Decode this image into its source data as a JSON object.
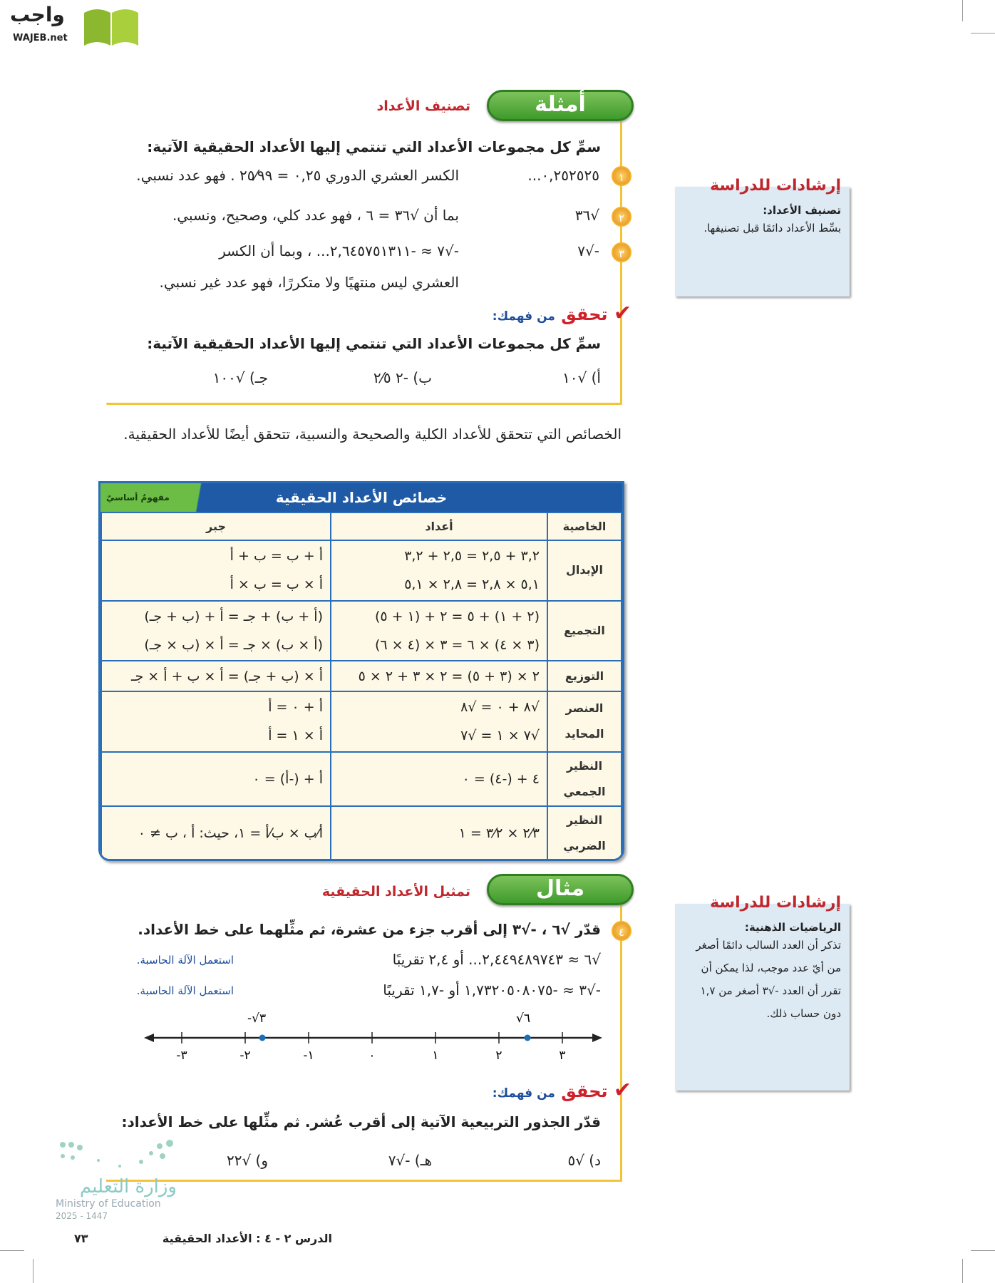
{
  "logo": {
    "ar": "واجب",
    "en": "WAJEB.net"
  },
  "examples": {
    "header": "أمثلة",
    "subtitle": "تصنيف الأعداد",
    "prompt": "سمِّ كل مجموعات الأعداد التي تنتمي إليها الأعداد الحقيقية الآتية:",
    "items": [
      {
        "num": "١",
        "expr": "٠,٢٥٢٥٢٥...",
        "text": "الكسر العشري الدوري ٠,٢٥ = ٢٥⁄٩٩ . فهو عدد نسبي."
      },
      {
        "num": "٢",
        "expr": "√٣٦",
        "text": "بما أن √٣٦ = ٦ ، فهو عدد كلي، وصحيح، ونسبي."
      },
      {
        "num": "٣",
        "expr": "-√٧",
        "text": "-√٧ ≈ -٢,٦٤٥٧٥١٣١١... ، وبما أن الكسر",
        "text2": "العشري ليس منتهيًا ولا متكررًا، فهو عدد غير نسبي."
      }
    ],
    "check": {
      "title": "تحقق",
      "subtitle": "من فهمك:",
      "prompt": "سمِّ كل مجموعات الأعداد التي تنتمي إليها الأعداد الحقيقية الآتية:",
      "items": [
        "أ) √١٠",
        "ب) -٢ ٢⁄٥",
        "جـ) √١٠٠"
      ]
    }
  },
  "note1": {
    "title": "إرشادات للدراسة",
    "heading": "تصنيف الأعداد:",
    "body": "بسِّط الأعداد دائمًا قبل تصنيفها."
  },
  "paragraph": "الخصائص التي تتحقق للأعداد الكلية والصحيحة والنسبية، تتحقق أيضًا للأعداد الحقيقية.",
  "table": {
    "title": "خصائص الأعداد الحقيقية",
    "badge": "مفهومٌ أساسيّ",
    "headers": [
      "الخاصية",
      "أعداد",
      "جبر"
    ],
    "rows": [
      {
        "p": "الإبدال",
        "n": [
          "٣,٢ + ٢,٥ = ٢,٥ + ٣,٢",
          "٥,١ × ٢,٨ = ٢,٨ × ٥,١"
        ],
        "a": [
          "أ + ب = ب + أ",
          "أ × ب = ب × أ"
        ]
      },
      {
        "p": "التجميع",
        "n": [
          "(٢ + ١) + ٥ = ٢ + (١ + ٥)",
          "(٣ × ٤) × ٦ = ٣ × (٤ × ٦)"
        ],
        "a": [
          "(أ + ب) + جـ = أ + (ب + جـ)",
          "(أ × ب) × جـ = أ × (ب × جـ)"
        ]
      },
      {
        "p": "التوزيع",
        "n": [
          "٢ × (٣ + ٥) = ٢ × ٣ + ٢ × ٥"
        ],
        "a": [
          "أ × (ب + جـ) = أ × ب + أ × جـ"
        ]
      },
      {
        "p": "العنصر المحايد",
        "n": [
          "√٨ + ٠ = √٨",
          "√٧ × ١ = √٧"
        ],
        "a": [
          "أ + ٠ = أ",
          "أ × ١ = أ"
        ]
      },
      {
        "p": "النظير الجمعي",
        "n": [
          "٤ + (-٤) = ٠"
        ],
        "a": [
          "أ + (-أ) = ٠"
        ]
      },
      {
        "p": "النظير الضربي",
        "n": [
          "٢⁄٣ × ٣⁄٢ = ١"
        ],
        "a": [
          "أ⁄ب × ب⁄أ = ١، حيث: أ ، ب ≠ ٠"
        ]
      }
    ]
  },
  "example": {
    "header": "مثال",
    "subtitle": "تمثيل الأعداد الحقيقية",
    "num": "٤",
    "prompt": "قدّر √٦ ، -√٣ إلى أقرب جزء من عشرة، ثم مثِّلهما على خط الأعداد.",
    "lines": [
      {
        "text": "√٦ ≈ ٢,٤٤٩٤٨٩٧٤٣... أو ٢,٤ تقريبًا",
        "hint": "استعمل الآلة الحاسبة."
      },
      {
        "text": "-√٣ ≈ -١,٧٣٢٠٥٠٨٠٧٥ أو -١,٧ تقريبًا",
        "hint": "استعمل الآلة الحاسبة."
      }
    ],
    "number_line": {
      "ticks": [
        "-٣",
        "-٢",
        "-١",
        "٠",
        "١",
        "٢",
        "٣"
      ],
      "points": [
        {
          "label": "-√٣",
          "value": -1.73
        },
        {
          "label": "√٦",
          "value": 2.45
        }
      ],
      "point_color": "#1a6fb8"
    },
    "check": {
      "title": "تحقق",
      "subtitle": "من فهمك:",
      "prompt": "قدّر الجذور التربيعية الآتية إلى أقرب عُشر. ثم مثِّلها على خط الأعداد:",
      "items": [
        "د) √٥",
        "هـ) -√٧",
        "و) √٢٢"
      ]
    }
  },
  "note2": {
    "title": "إرشادات للدراسة",
    "heading": "الرياضيات الذهنية:",
    "body": "تذكر أن العدد السالب دائمًا أصغر من أيّ عدد موجب، لذا يمكن أن تقرر أن العدد -√٣ أصغر من ١,٧ دون حساب ذلك."
  },
  "ministry": {
    "ar": "وزارة التعليم",
    "en": "Ministry of Education",
    "year": "2025 - 1447"
  },
  "footer": {
    "page": "٧٣",
    "lesson": "الدرس ٢ - ٤ :  الأعداد الحقيقية"
  }
}
